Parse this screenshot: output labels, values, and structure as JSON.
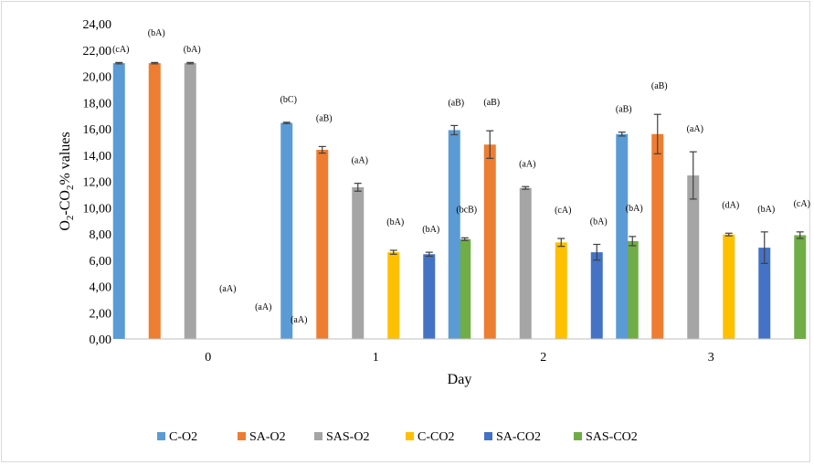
{
  "chart_data": {
    "type": "bar",
    "title": "",
    "xlabel": "Day",
    "ylabel": {
      "main": "O",
      "sub1": "2",
      "mid": "-CO",
      "sub2": "2",
      "tail": "% values"
    },
    "ylim": [
      0,
      24
    ],
    "yticks": [
      "0,00",
      "2,00",
      "4,00",
      "6,00",
      "8,00",
      "10,00",
      "12,00",
      "14,00",
      "16,00",
      "18,00",
      "20,00",
      "22,00",
      "24,00"
    ],
    "categories": [
      "0",
      "1",
      "2",
      "3"
    ],
    "grid": false,
    "legend_position": "bottom",
    "series": [
      {
        "name": "C-O2",
        "color": "#5b9bd5",
        "values": [
          21.0,
          16.45,
          15.9,
          15.6
        ],
        "errors": [
          0.05,
          0.05,
          0.35,
          0.15
        ],
        "labels": [
          "(cA)",
          "(bC)",
          "(aB)",
          "(aB)"
        ]
      },
      {
        "name": "SA-O2",
        "color": "#ed7d31",
        "values": [
          21.0,
          14.4,
          14.8,
          15.6
        ],
        "errors": [
          0.05,
          0.25,
          1.05,
          1.5
        ],
        "labels": [
          "(bA)",
          "(aB)",
          "(aB)",
          "(aB)"
        ]
      },
      {
        "name": "SAS-O2",
        "color": "#a5a5a5",
        "values": [
          21.0,
          11.55,
          11.5,
          12.45
        ],
        "errors": [
          0.05,
          0.3,
          0.1,
          1.8
        ],
        "labels": [
          "(bA)",
          "(aA)",
          "(aA)",
          "(aA)"
        ]
      },
      {
        "name": "C-CO2",
        "color": "#ffc000",
        "values": [
          0,
          6.6,
          7.35,
          7.95
        ],
        "errors": [
          0,
          0.15,
          0.3,
          0.1
        ],
        "labels": [
          "(aA)",
          "(bA)",
          "(cA)",
          "(dA)"
        ]
      },
      {
        "name": "SA-CO2",
        "color": "#4472c4",
        "values": [
          0,
          6.45,
          6.6,
          6.95
        ],
        "errors": [
          0,
          0.15,
          0.6,
          1.2
        ],
        "labels": [
          "(aA)",
          "(bA)",
          "(bA)",
          "(bA)"
        ]
      },
      {
        "name": "SAS-CO2",
        "color": "#70ad47",
        "values": [
          0,
          7.6,
          7.45,
          7.9
        ],
        "errors": [
          0,
          0.1,
          0.35,
          0.25
        ],
        "labels": [
          "(aA)",
          "(bcB)",
          "(bA)",
          "(cA)"
        ]
      }
    ]
  }
}
